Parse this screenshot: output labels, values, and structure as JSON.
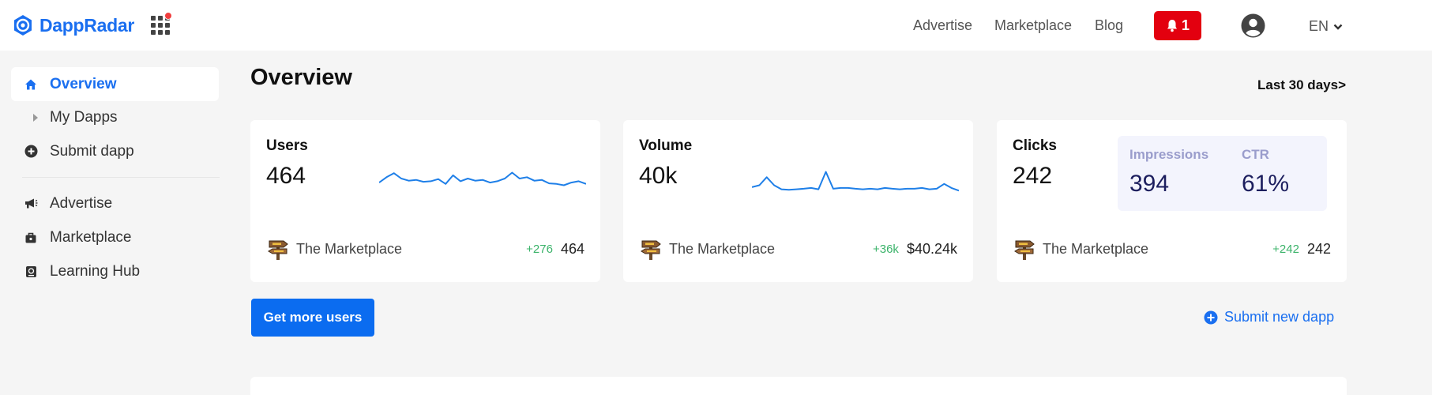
{
  "header": {
    "logo_text": "DappRadar",
    "nav": [
      "Advertise",
      "Marketplace",
      "Blog"
    ],
    "notification_count": "1",
    "language": "EN",
    "accent": "#1a6ff0",
    "alert": "#e3000f"
  },
  "sidebar": {
    "items": [
      {
        "label": "Overview",
        "icon": "home-icon"
      },
      {
        "label": "My Dapps",
        "icon": "caret-right-icon"
      },
      {
        "label": "Submit dapp",
        "icon": "plus-circle-icon"
      },
      {
        "label": "Advertise",
        "icon": "megaphone-icon"
      },
      {
        "label": "Marketplace",
        "icon": "briefcase-icon"
      },
      {
        "label": "Learning Hub",
        "icon": "book-icon"
      }
    ]
  },
  "main": {
    "title": "Overview",
    "range": "Last 30 days",
    "range_arrow": ">",
    "cards": [
      {
        "label": "Users",
        "value": "464",
        "dapp": "The Marketplace",
        "delta": "+276",
        "foot_value": "464",
        "sparkline": [
          0.35,
          0.55,
          0.7,
          0.5,
          0.42,
          0.45,
          0.38,
          0.4,
          0.48,
          0.3,
          0.62,
          0.4,
          0.5,
          0.42,
          0.45,
          0.35,
          0.4,
          0.5,
          0.72,
          0.5,
          0.55,
          0.42,
          0.45,
          0.32,
          0.3,
          0.25,
          0.35,
          0.4,
          0.3
        ]
      },
      {
        "label": "Volume",
        "value": "40k",
        "dapp": "The Marketplace",
        "delta": "+36k",
        "foot_value": "$40.24k",
        "sparkline": [
          0.18,
          0.25,
          0.55,
          0.25,
          0.1,
          0.08,
          0.1,
          0.12,
          0.15,
          0.1,
          0.75,
          0.12,
          0.15,
          0.15,
          0.12,
          0.1,
          0.12,
          0.1,
          0.15,
          0.12,
          0.1,
          0.12,
          0.12,
          0.15,
          0.1,
          0.12,
          0.3,
          0.15,
          0.05
        ]
      },
      {
        "label": "Clicks",
        "value": "242",
        "dapp": "The Marketplace",
        "delta": "+242",
        "foot_value": "242",
        "extra": {
          "impressions_label": "Impressions",
          "impressions": "394",
          "ctr_label": "CTR",
          "ctr": "61%"
        }
      }
    ],
    "cta_label": "Get more users",
    "submit_new_label": "Submit new dapp"
  }
}
